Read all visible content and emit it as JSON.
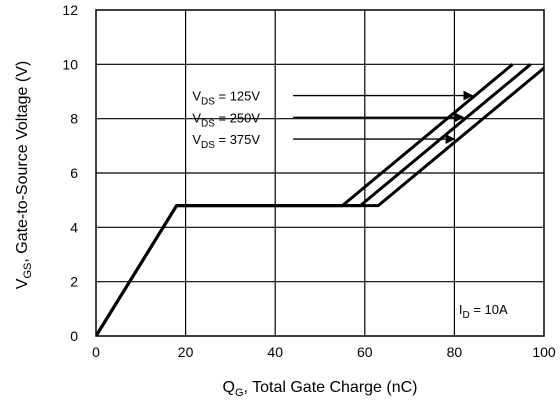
{
  "chart_data": {
    "type": "line",
    "title": "",
    "xlabel_main": "Q",
    "xlabel_sub": "G",
    "xlabel_rest": ", Total Gate Charge (nC)",
    "ylabel_main": "V",
    "ylabel_sub": "GS",
    "ylabel_rest": ", Gate-to-Source Voltage (V)",
    "xlim": [
      0,
      100
    ],
    "ylim": [
      0,
      12
    ],
    "xticks": [
      0,
      20,
      40,
      60,
      80,
      100
    ],
    "yticks": [
      0,
      2,
      4,
      6,
      8,
      10,
      12
    ],
    "grid": true,
    "series": [
      {
        "name": "VDS = 125V",
        "x": [
          0,
          18,
          55,
          93
        ],
        "y": [
          0,
          4.8,
          4.8,
          10
        ]
      },
      {
        "name": "VDS = 250V",
        "x": [
          0,
          18,
          59,
          97
        ],
        "y": [
          0,
          4.8,
          4.8,
          10
        ]
      },
      {
        "name": "VDS = 375V",
        "x": [
          0,
          18,
          63,
          101
        ],
        "y": [
          0,
          4.8,
          4.8,
          10
        ]
      }
    ],
    "annotations": [
      {
        "main": "V",
        "sub": "DS",
        "rest": " = 125V",
        "label_x": 21.5,
        "label_y": 8.85,
        "arrow_from_x": 44,
        "arrow_to_x": 84,
        "arrow_y": 8.85
      },
      {
        "main": "V",
        "sub": "DS",
        "rest": " = 250V",
        "label_x": 21.5,
        "label_y": 8.05,
        "arrow_from_x": 44,
        "arrow_to_x": 82,
        "arrow_y": 8.05
      },
      {
        "main": "V",
        "sub": "DS",
        "rest": " = 375V",
        "label_x": 21.5,
        "label_y": 7.25,
        "arrow_from_x": 44,
        "arrow_to_x": 80,
        "arrow_y": 7.25
      }
    ],
    "condition": {
      "main": "I",
      "sub": "D",
      "rest": " = 10A",
      "x": 81,
      "y": 1.0
    }
  }
}
